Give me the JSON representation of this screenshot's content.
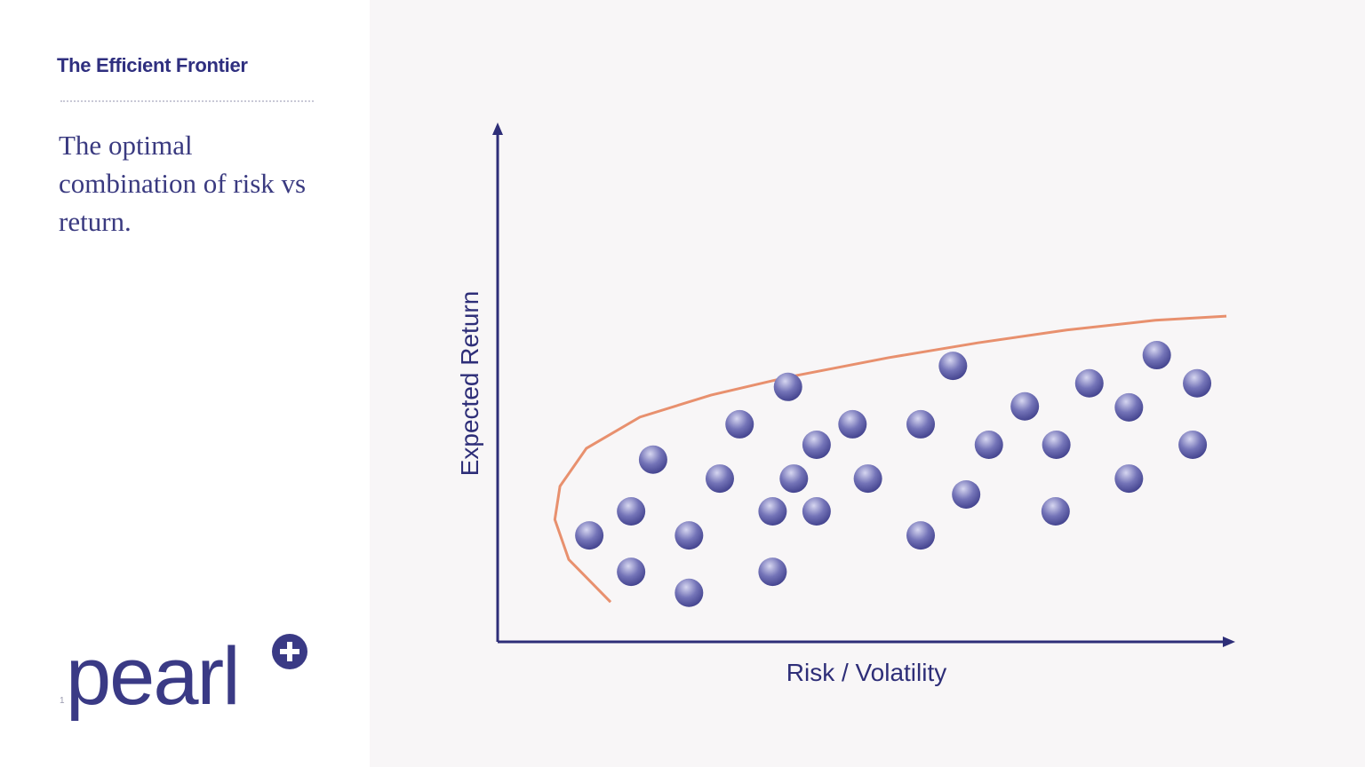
{
  "slide": {
    "title": "The Efficient Frontier",
    "text": "The optimal combination of risk vs return.",
    "logo": "pearl",
    "page_number": "1"
  },
  "chart_data": {
    "type": "scatter",
    "x_label": "Risk / Volatility",
    "y_label": "Expected Return",
    "xlim": [
      0,
      100
    ],
    "ylim": [
      0,
      100
    ],
    "series": [
      {
        "type": "scatter",
        "color": "#5b5ba6",
        "x": [
          12.5,
          18.2,
          18.2,
          21.2,
          26.1,
          26.1,
          30.3,
          33.0,
          37.5,
          37.5,
          39.6,
          40.4,
          43.5,
          43.5,
          48.4,
          50.5,
          57.7,
          57.7,
          62.1,
          63.9,
          67.0,
          71.9,
          76.2,
          76.1,
          80.7,
          86.1,
          86.1,
          89.9,
          95.4,
          94.8
        ],
        "values": [
          20.6,
          25.3,
          13.5,
          35.4,
          20.6,
          9.4,
          31.7,
          42.3,
          25.3,
          13.5,
          49.6,
          31.7,
          38.3,
          25.3,
          42.3,
          31.7,
          42.3,
          20.6,
          53.7,
          28.6,
          38.3,
          45.8,
          38.3,
          25.3,
          50.3,
          45.6,
          31.7,
          55.8,
          50.3,
          38.3
        ]
      },
      {
        "type": "line",
        "color": "#e8906e",
        "x": [
          15.4,
          9.7,
          7.8,
          8.5,
          12.1,
          19.4,
          29.1,
          39.6,
          53.3,
          65.5,
          77.6,
          89.7,
          99.4
        ],
        "values": [
          7.6,
          15.9,
          23.7,
          30.2,
          37.6,
          43.7,
          48.0,
          51.5,
          55.3,
          58.2,
          60.7,
          62.6,
          63.4
        ]
      }
    ]
  }
}
